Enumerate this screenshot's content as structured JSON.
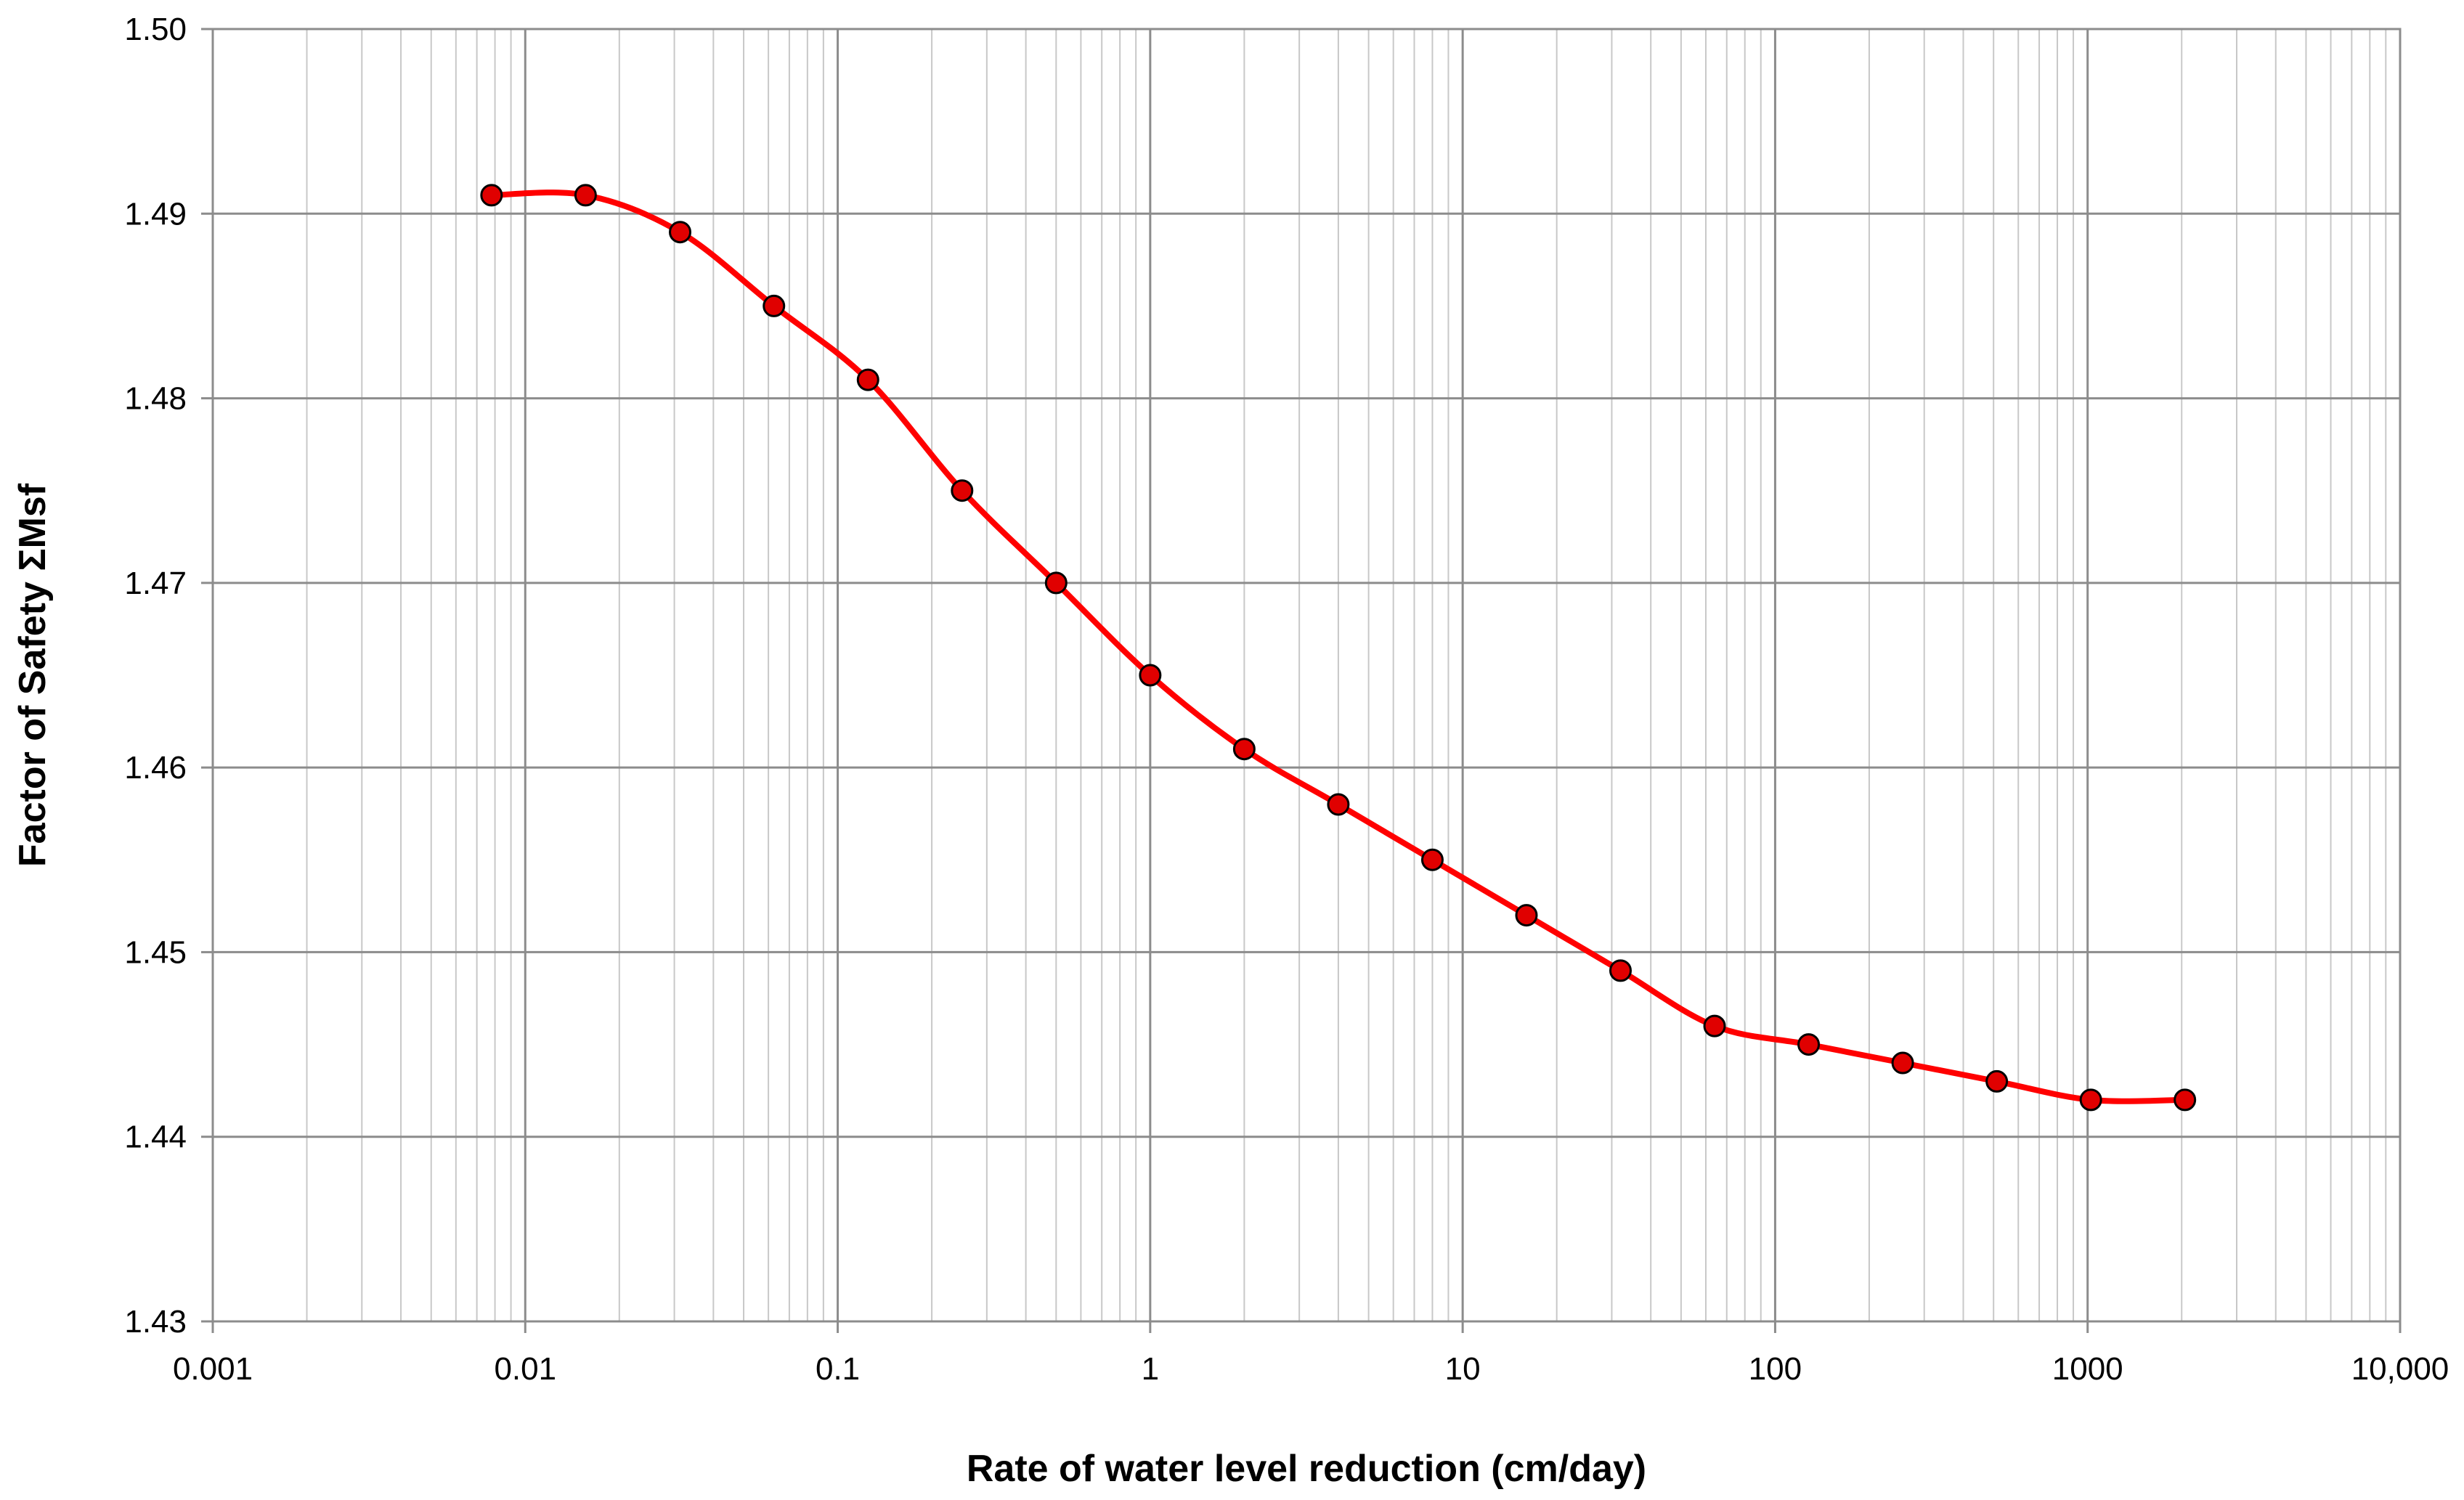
{
  "chart_data": {
    "type": "line",
    "title": "",
    "xlabel": "Rate of water level reduction (cm/day)",
    "ylabel": "Factor of Safety ΣMsf",
    "x_scale": "log",
    "xlim": [
      0.001,
      10000
    ],
    "ylim": [
      1.43,
      1.5
    ],
    "grid": true,
    "x_tick_labels": [
      "0.001",
      "0.01",
      "0.1",
      "1",
      "10",
      "100",
      "1000",
      "10,000"
    ],
    "y_tick_labels": [
      "1.43",
      "1.44",
      "1.45",
      "1.46",
      "1.47",
      "1.48",
      "1.49",
      "1.50"
    ],
    "series": [
      {
        "name": "",
        "line_color": "#ff0000",
        "marker_color": "#e00000",
        "marker_edge_color": "#000000",
        "smooth": true,
        "points": [
          {
            "x": 0.0078,
            "y": 1.491
          },
          {
            "x": 0.0156,
            "y": 1.491
          },
          {
            "x": 0.0313,
            "y": 1.489
          },
          {
            "x": 0.0625,
            "y": 1.485
          },
          {
            "x": 0.125,
            "y": 1.481
          },
          {
            "x": 0.25,
            "y": 1.475
          },
          {
            "x": 0.5,
            "y": 1.47
          },
          {
            "x": 1,
            "y": 1.465
          },
          {
            "x": 2,
            "y": 1.461
          },
          {
            "x": 4,
            "y": 1.458
          },
          {
            "x": 8,
            "y": 1.455
          },
          {
            "x": 16,
            "y": 1.452
          },
          {
            "x": 32,
            "y": 1.449
          },
          {
            "x": 64,
            "y": 1.446
          },
          {
            "x": 128,
            "y": 1.445
          },
          {
            "x": 256,
            "y": 1.444
          },
          {
            "x": 512,
            "y": 1.443
          },
          {
            "x": 1024,
            "y": 1.442
          },
          {
            "x": 2048,
            "y": 1.442
          }
        ]
      }
    ]
  }
}
